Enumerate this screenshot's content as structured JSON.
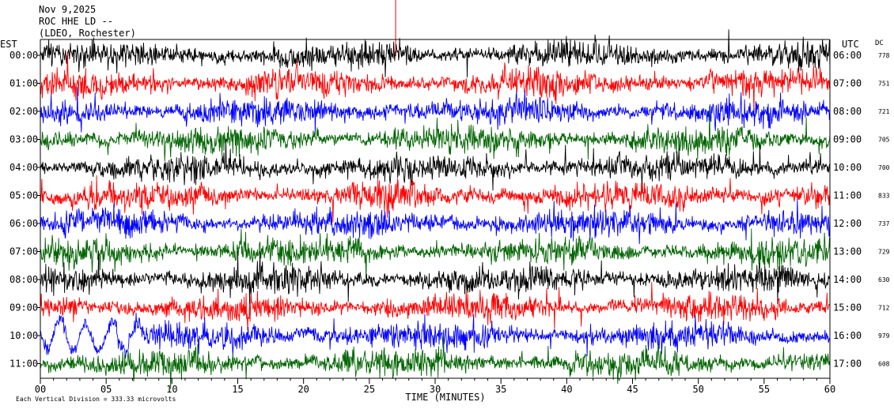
{
  "header": {
    "line1": "Nov 9,2025",
    "line2": "ROC HHE LD --",
    "line3": "(LDEO, Rochester)"
  },
  "left_axis_label": "EST",
  "right_axis_label": "UTC",
  "dc_label": "DC",
  "footer": {
    "scale_note": "Each Vertical Division =  333.33 microvolts"
  },
  "chart_data": {
    "type": "line",
    "xlabel": "TIME (MINUTES)",
    "x_ticks": [
      "00",
      "05",
      "10",
      "15",
      "20",
      "25",
      "30",
      "35",
      "40",
      "45",
      "50",
      "55",
      "60"
    ],
    "xlim": [
      0,
      60
    ],
    "rows": [
      {
        "est": "00:00",
        "utc": "06:00",
        "dc": "778",
        "color": "#000000"
      },
      {
        "est": "01:00",
        "utc": "07:00",
        "dc": "751",
        "color": "#ff0000"
      },
      {
        "est": "02:00",
        "utc": "08:00",
        "dc": "721",
        "color": "#0000ff"
      },
      {
        "est": "03:00",
        "utc": "09:00",
        "dc": "705",
        "color": "#006400"
      },
      {
        "est": "04:00",
        "utc": "10:00",
        "dc": "700",
        "color": "#000000"
      },
      {
        "est": "05:00",
        "utc": "11:00",
        "dc": "833",
        "color": "#ff0000"
      },
      {
        "est": "06:00",
        "utc": "12:00",
        "dc": "737",
        "color": "#0000ff"
      },
      {
        "est": "07:00",
        "utc": "13:00",
        "dc": "729",
        "color": "#006400"
      },
      {
        "est": "08:00",
        "utc": "14:00",
        "dc": "630",
        "color": "#000000"
      },
      {
        "est": "09:00",
        "utc": "15:00",
        "dc": "712",
        "color": "#ff0000"
      },
      {
        "est": "10:00",
        "utc": "16:00",
        "dc": "979",
        "color": "#0000ff"
      },
      {
        "est": "11:00",
        "utc": "17:00",
        "dc": "608",
        "color": "#006400"
      }
    ],
    "marker_minute": 27
  }
}
